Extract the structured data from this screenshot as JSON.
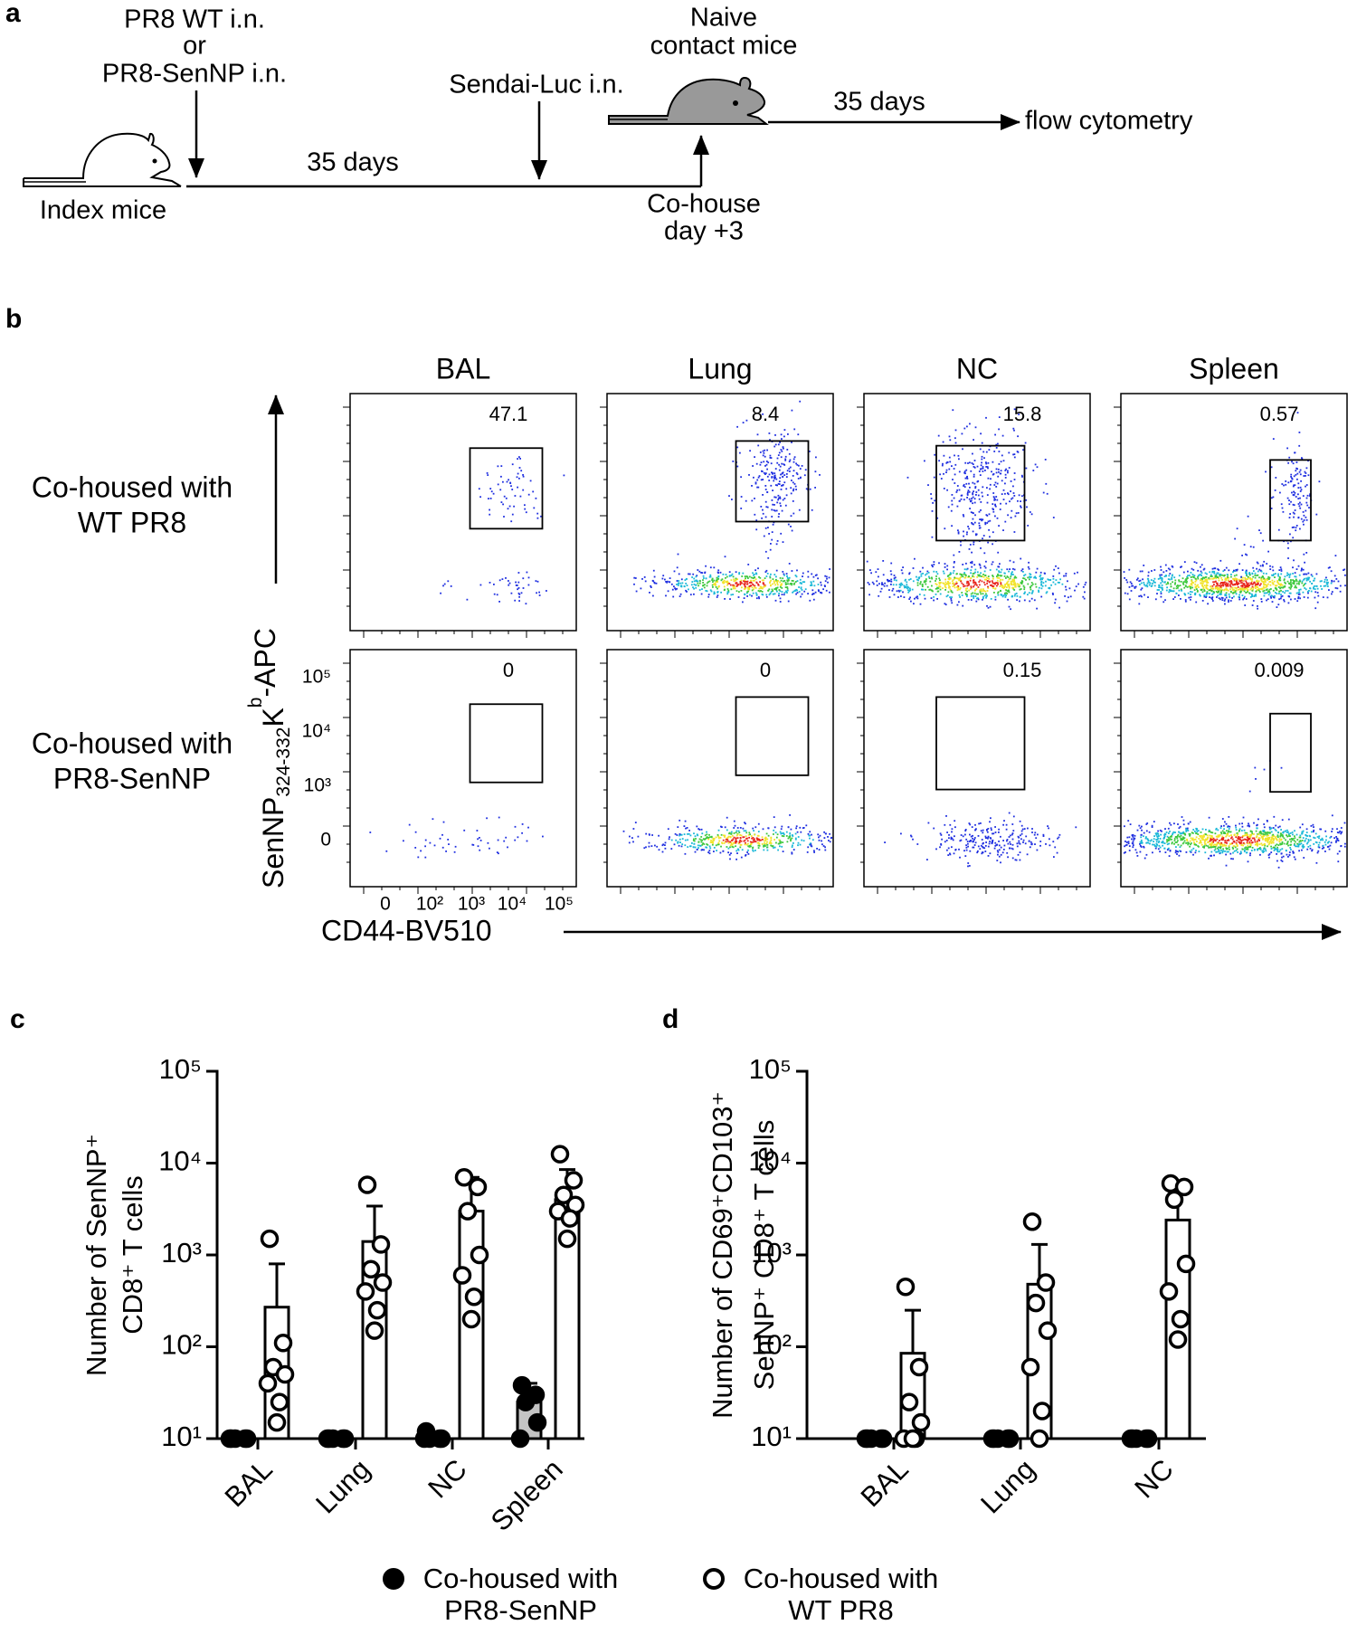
{
  "panel_labels": [
    "a",
    "b",
    "c",
    "d"
  ],
  "diagram": {
    "infection": [
      "PR8 WT i.n.",
      "or",
      "PR8-SenNP i.n."
    ],
    "index_mice": "Index mice",
    "interval_1": "35 days",
    "challenge": "Sendai-Luc i.n.",
    "contact_mice": [
      "Naive",
      "contact mice"
    ],
    "cohouse": [
      "Co-house",
      "day +3"
    ],
    "interval_2": "35 days",
    "readout": "flow cytometry"
  },
  "flow": {
    "columns": [
      "BAL",
      "Lung",
      "NC",
      "Spleen"
    ],
    "rows": [
      {
        "label": [
          "Co-housed with",
          "WT PR8"
        ],
        "gates": [
          47.1,
          8.4,
          15.8,
          0.57
        ]
      },
      {
        "label": [
          "Co-housed with",
          "PR8-SenNP"
        ],
        "gates": [
          0,
          0,
          0.15,
          0.009
        ]
      }
    ],
    "y_label": [
      "SenNP",
      "324-332",
      "K",
      "b",
      "-APC"
    ],
    "y_ticks": [
      "10⁵",
      "10⁴",
      "10³",
      "0"
    ],
    "x_label": "CD44-BV510",
    "x_ticks": [
      "0",
      "10²",
      "10³",
      "10⁴",
      "10⁵"
    ]
  },
  "chart_data": [
    {
      "type": "bar",
      "log_scale": true,
      "y_label": [
        "Number of SenNP⁺",
        "CD8⁺ T cells"
      ],
      "categories": [
        "BAL",
        "Lung",
        "NC",
        "Spleen"
      ],
      "ylim": [
        10,
        100000
      ],
      "yticks": [
        {
          "value": 10,
          "label": "10¹"
        },
        {
          "value": 100,
          "label": "10²"
        },
        {
          "value": 1000,
          "label": "10³"
        },
        {
          "value": 10000,
          "label": "10⁴"
        },
        {
          "value": 100000,
          "label": "10⁵"
        }
      ],
      "legend": "bottom",
      "series": [
        {
          "name": "Co-housed with PR8-SenNP",
          "color": "#000000",
          "bar_color": "#c4c4c4",
          "marker": "filled",
          "values": [
            10,
            10,
            10,
            25
          ],
          "errors": [
            0,
            0,
            0,
            15
          ],
          "points": [
            [
              10,
              10,
              10,
              10,
              10
            ],
            [
              10,
              10,
              10,
              10,
              10
            ],
            [
              12,
              10,
              10,
              10,
              10
            ],
            [
              38,
              30,
              25,
              15,
              10
            ]
          ]
        },
        {
          "name": "Co-housed with WT PR8",
          "color": "#000000",
          "bar_color": "#ffffff",
          "marker": "open",
          "values": [
            270,
            1400,
            3000,
            4000
          ],
          "errors": [
            530,
            2000,
            4000,
            4500
          ],
          "points": [
            [
              1500,
              110,
              60,
              50,
              40,
              25,
              15
            ],
            [
              5800,
              1300,
              700,
              500,
              400,
              250,
              150
            ],
            [
              7000,
              5500,
              3000,
              1000,
              600,
              350,
              200
            ],
            [
              12500,
              6500,
              4500,
              3500,
              3000,
              2500,
              1500
            ]
          ]
        }
      ]
    },
    {
      "type": "bar",
      "log_scale": true,
      "y_label": [
        "Number of CD69⁺CD103⁺",
        "SenNP⁺ CD8⁺ T cells"
      ],
      "categories": [
        "BAL",
        "Lung",
        "NC"
      ],
      "ylim": [
        10,
        100000
      ],
      "yticks": [
        {
          "value": 10,
          "label": "10¹"
        },
        {
          "value": 100,
          "label": "10²"
        },
        {
          "value": 1000,
          "label": "10³"
        },
        {
          "value": 10000,
          "label": "10⁴"
        },
        {
          "value": 100000,
          "label": "10⁵"
        }
      ],
      "series": [
        {
          "color": "#000000",
          "bar_color": "#c4c4c4",
          "marker": "filled",
          "values": [
            10,
            10,
            10
          ],
          "errors": [
            0,
            0,
            0
          ],
          "points": [
            [
              10,
              10,
              10,
              10,
              10
            ],
            [
              10,
              10,
              10,
              10,
              10
            ],
            [
              10,
              10,
              10,
              10,
              10
            ]
          ]
        },
        {
          "color": "#000000",
          "bar_color": "#ffffff",
          "marker": "open",
          "values": [
            85,
            480,
            2400
          ],
          "errors": [
            165,
            820,
            3100
          ],
          "points": [
            [
              450,
              60,
              25,
              15,
              10,
              10,
              10
            ],
            [
              2300,
              500,
              300,
              150,
              60,
              20,
              10
            ],
            [
              6000,
              5500,
              4000,
              800,
              400,
              200,
              120
            ]
          ]
        }
      ]
    }
  ]
}
